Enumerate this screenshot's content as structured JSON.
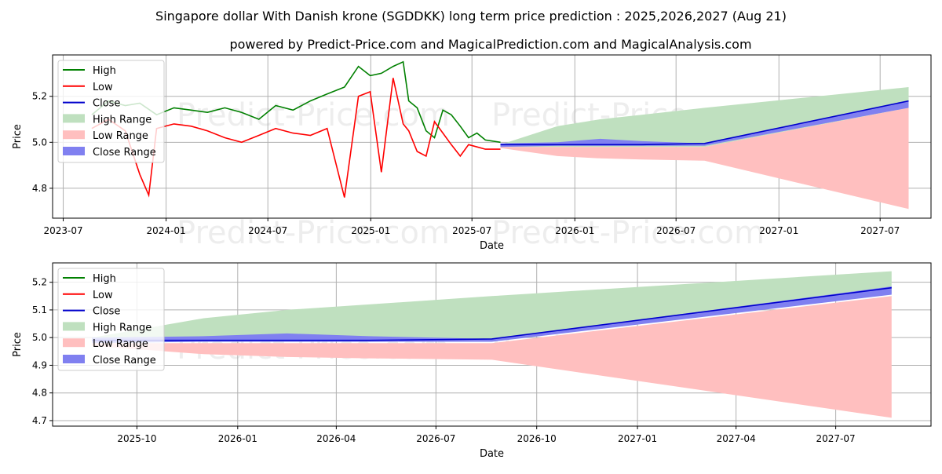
{
  "title": "Singapore dollar With Danish krone (SGDDKK) long term price prediction : 2025,2026,2027 (Aug 21)",
  "subtitle": "powered by Predict-Price.com and MagicalPrediction.com and MagicalAnalysis.com",
  "watermark": "Predict-Price.com",
  "colors": {
    "high": "#008000",
    "low": "#ff0000",
    "close": "#0000cc",
    "high_range": "#bfe0bf",
    "low_range": "#ffbfbf",
    "close_range": "#8080f0"
  },
  "chart_data": [
    {
      "type": "line",
      "xlabel": "Date",
      "ylabel": "Price",
      "xlim": [
        "2023-06-12",
        "2027-09-30"
      ],
      "ylim": [
        4.67,
        5.38
      ],
      "yticks": [
        4.8,
        5.0,
        5.2
      ],
      "ytick_labels": [
        "4.8",
        "5.0",
        "5.2"
      ],
      "xticks": [
        "2023-07-01",
        "2024-01-01",
        "2024-07-01",
        "2025-01-01",
        "2025-07-01",
        "2026-01-01",
        "2026-07-01",
        "2027-01-01",
        "2027-07-01"
      ],
      "xtick_labels": [
        "2023-07",
        "2024-01",
        "2024-07",
        "2025-01",
        "2025-07",
        "2026-01",
        "2026-07",
        "2027-01",
        "2027-07"
      ],
      "grid": true,
      "legend": {
        "placement": "top-left",
        "entries": [
          "High",
          "Low",
          "Close",
          "High Range",
          "Low Range",
          "Close Range"
        ]
      },
      "series": [
        {
          "name": "High",
          "x": [
            "2023-08-21",
            "2023-09-20",
            "2023-10-20",
            "2023-11-15",
            "2023-12-15",
            "2024-01-15",
            "2024-02-15",
            "2024-03-15",
            "2024-04-15",
            "2024-05-15",
            "2024-06-15",
            "2024-07-15",
            "2024-08-15",
            "2024-09-15",
            "2024-10-15",
            "2024-11-15",
            "2024-12-10",
            "2024-12-31",
            "2025-01-20",
            "2025-02-10",
            "2025-02-28",
            "2025-03-10",
            "2025-03-25",
            "2025-04-10",
            "2025-04-25",
            "2025-05-10",
            "2025-05-25",
            "2025-06-10",
            "2025-06-25",
            "2025-07-10",
            "2025-07-25",
            "2025-08-21"
          ],
          "values": [
            5.12,
            5.18,
            5.16,
            5.17,
            5.12,
            5.15,
            5.14,
            5.13,
            5.15,
            5.13,
            5.1,
            5.16,
            5.14,
            5.18,
            5.21,
            5.24,
            5.33,
            5.29,
            5.3,
            5.33,
            5.35,
            5.18,
            5.15,
            5.05,
            5.02,
            5.14,
            5.12,
            5.07,
            5.02,
            5.04,
            5.01,
            5.0
          ]
        },
        {
          "name": "Low",
          "x": [
            "2023-08-21",
            "2023-09-20",
            "2023-10-20",
            "2023-11-15",
            "2023-12-01",
            "2023-12-15",
            "2024-01-15",
            "2024-02-15",
            "2024-03-15",
            "2024-04-15",
            "2024-05-15",
            "2024-06-15",
            "2024-07-15",
            "2024-08-15",
            "2024-09-15",
            "2024-10-15",
            "2024-11-15",
            "2024-12-10",
            "2024-12-31",
            "2025-01-20",
            "2025-02-10",
            "2025-02-28",
            "2025-03-10",
            "2025-03-25",
            "2025-04-10",
            "2025-04-25",
            "2025-05-10",
            "2025-05-25",
            "2025-06-10",
            "2025-06-25",
            "2025-07-10",
            "2025-07-25",
            "2025-08-21"
          ],
          "values": [
            5.06,
            5.1,
            5.05,
            4.86,
            4.77,
            5.06,
            5.08,
            5.07,
            5.05,
            5.02,
            5.0,
            5.03,
            5.06,
            5.04,
            5.03,
            5.06,
            4.76,
            5.2,
            5.22,
            4.87,
            5.28,
            5.08,
            5.05,
            4.96,
            4.94,
            5.09,
            5.04,
            4.99,
            4.94,
            4.99,
            4.98,
            4.97,
            4.97
          ]
        },
        {
          "name": "Close",
          "x": [
            "2025-08-21",
            "2025-12-01",
            "2026-02-15",
            "2026-05-01",
            "2026-08-21",
            "2027-08-21"
          ],
          "values": [
            4.99,
            4.99,
            4.99,
            4.99,
            4.995,
            5.18
          ]
        },
        {
          "name": "High Range",
          "x": [
            "2025-08-21",
            "2025-12-01",
            "2026-02-15",
            "2026-05-01",
            "2026-08-21",
            "2027-08-21"
          ],
          "upper": [
            4.99,
            5.07,
            5.1,
            5.12,
            5.15,
            5.24
          ],
          "lower": [
            4.98,
            4.98,
            4.98,
            4.98,
            4.98,
            5.15
          ]
        },
        {
          "name": "Low Range",
          "x": [
            "2025-08-21",
            "2025-12-01",
            "2026-02-15",
            "2026-05-01",
            "2026-08-21",
            "2027-08-21"
          ],
          "upper": [
            4.98,
            4.98,
            4.98,
            4.98,
            4.98,
            5.15
          ],
          "lower": [
            4.975,
            4.94,
            4.93,
            4.925,
            4.92,
            4.71
          ]
        },
        {
          "name": "Close Range",
          "x": [
            "2025-08-21",
            "2025-12-01",
            "2026-02-15",
            "2026-05-01",
            "2026-08-21",
            "2027-08-21"
          ],
          "upper": [
            4.995,
            5.0,
            5.015,
            5.005,
            4.995,
            5.18
          ],
          "lower": [
            4.98,
            4.985,
            4.985,
            4.985,
            4.985,
            5.15
          ]
        }
      ]
    },
    {
      "type": "line",
      "xlabel": "Date",
      "ylabel": "Price",
      "xlim": [
        "2025-07-16",
        "2027-09-26"
      ],
      "ylim": [
        4.68,
        5.27
      ],
      "yticks": [
        4.7,
        4.8,
        4.9,
        5.0,
        5.1,
        5.2
      ],
      "ytick_labels": [
        "4.7",
        "4.8",
        "4.9",
        "5.0",
        "5.1",
        "5.2"
      ],
      "xticks": [
        "2025-10-01",
        "2026-01-01",
        "2026-04-01",
        "2026-07-01",
        "2026-10-01",
        "2027-01-01",
        "2027-04-01",
        "2027-07-01"
      ],
      "xtick_labels": [
        "2025-10",
        "2026-01",
        "2026-04",
        "2026-07",
        "2026-10",
        "2027-01",
        "2027-04",
        "2027-07"
      ],
      "grid": true,
      "legend": {
        "placement": "top-left",
        "entries": [
          "High",
          "Low",
          "Close",
          "High Range",
          "Low Range",
          "Close Range"
        ]
      },
      "series": [
        {
          "name": "Close",
          "x": [
            "2025-08-21",
            "2025-12-01",
            "2026-02-15",
            "2026-05-01",
            "2026-08-21",
            "2027-08-21"
          ],
          "values": [
            4.99,
            4.99,
            4.99,
            4.99,
            4.995,
            5.18
          ]
        },
        {
          "name": "High Range",
          "x": [
            "2025-08-21",
            "2025-12-01",
            "2026-02-15",
            "2026-05-01",
            "2026-08-21",
            "2027-08-21"
          ],
          "upper": [
            5.0,
            5.07,
            5.1,
            5.12,
            5.15,
            5.24
          ],
          "lower": [
            4.99,
            4.99,
            4.99,
            4.99,
            4.99,
            5.16
          ]
        },
        {
          "name": "Low Range",
          "x": [
            "2025-08-21",
            "2025-12-01",
            "2026-02-15",
            "2026-05-01",
            "2026-08-21",
            "2027-08-21"
          ],
          "upper": [
            4.98,
            4.98,
            4.98,
            4.98,
            4.98,
            5.15
          ],
          "lower": [
            4.97,
            4.94,
            4.93,
            4.925,
            4.92,
            4.71
          ]
        },
        {
          "name": "Close Range",
          "x": [
            "2025-08-21",
            "2025-12-01",
            "2026-02-15",
            "2026-05-01",
            "2026-08-21",
            "2027-08-21"
          ],
          "upper": [
            5.0,
            5.005,
            5.015,
            5.005,
            4.995,
            5.185
          ],
          "lower": [
            4.98,
            4.985,
            4.985,
            4.985,
            4.985,
            5.155
          ]
        }
      ]
    }
  ]
}
